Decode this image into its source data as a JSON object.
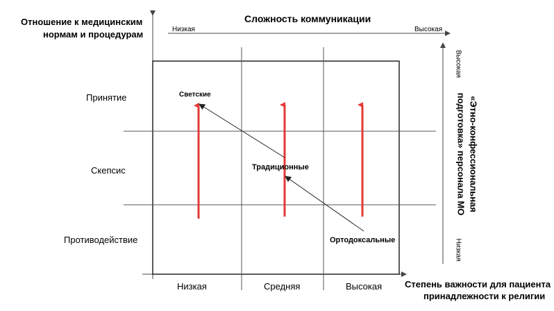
{
  "titles": {
    "y_axis": "Отношение к медицинским нормам и процедурам",
    "x_axis_top": "Сложность коммуникации",
    "x_axis_bottom": "Степень важности для пациента принадлежности к религии",
    "right_axis": "«Этно-конфессиональная подготовка» персонала МО"
  },
  "top_scale": {
    "low": "Низкая",
    "high": "Высокая"
  },
  "right_scale": {
    "high": "Высокая",
    "low": "Низкая"
  },
  "rows": {
    "top": "Принятие",
    "middle": "Скепсис",
    "bottom": "Противодействие"
  },
  "columns": {
    "left": "Низкая",
    "middle": "Средняя",
    "right": "Высокая"
  },
  "groups": {
    "secular": "Светские",
    "traditional": "Традиционные",
    "orthodox": "Ортодоксальные"
  },
  "colors": {
    "arrow": "#e53935",
    "line": "#555555",
    "frame": "#000000"
  }
}
